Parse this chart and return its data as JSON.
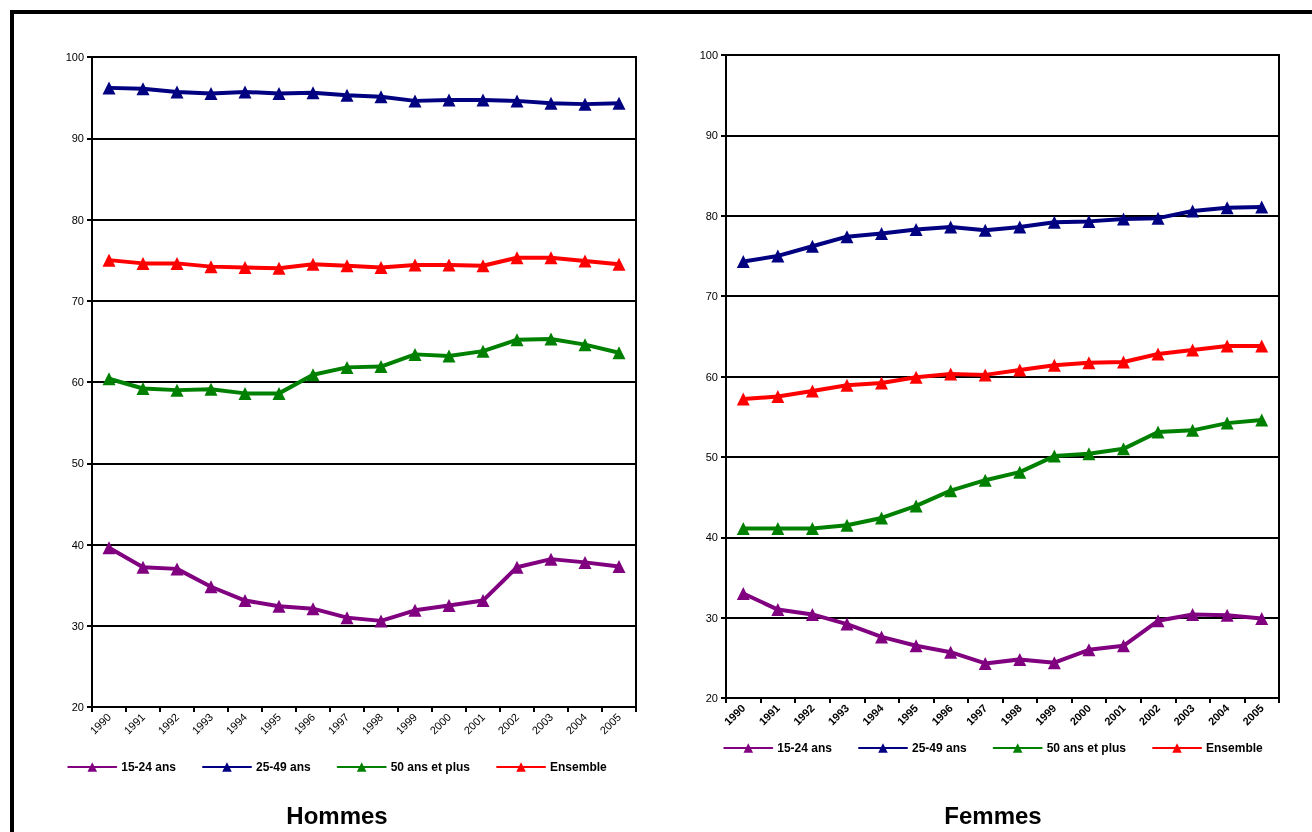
{
  "chart_data": [
    {
      "type": "line",
      "title": "Hommes",
      "categories": [
        "1990",
        "1991",
        "1992",
        "1993",
        "1994",
        "1995",
        "1996",
        "1997",
        "1998",
        "1999",
        "2000",
        "2001",
        "2002",
        "2003",
        "2004",
        "2005"
      ],
      "series": [
        {
          "name": "15-24 ans",
          "color": "#800080",
          "values": [
            39.6,
            37.2,
            37.0,
            34.8,
            33.1,
            32.4,
            32.1,
            31.0,
            30.6,
            31.9,
            32.5,
            33.1,
            37.2,
            38.2,
            37.8,
            37.3
          ]
        },
        {
          "name": "25-49 ans",
          "color": "#000080",
          "values": [
            96.2,
            96.1,
            95.7,
            95.5,
            95.7,
            95.5,
            95.6,
            95.3,
            95.1,
            94.6,
            94.7,
            94.7,
            94.6,
            94.3,
            94.2,
            94.3
          ]
        },
        {
          "name": "50 ans et plus",
          "color": "#008000",
          "values": [
            60.4,
            59.2,
            59.0,
            59.1,
            58.6,
            58.6,
            60.9,
            61.8,
            61.9,
            63.4,
            63.2,
            63.8,
            65.2,
            65.3,
            64.6,
            63.6
          ]
        },
        {
          "name": "Ensemble",
          "color": "#ff0000",
          "values": [
            75.0,
            74.6,
            74.6,
            74.2,
            74.1,
            74.0,
            74.5,
            74.3,
            74.1,
            74.4,
            74.4,
            74.3,
            75.3,
            75.3,
            74.9,
            74.5
          ]
        }
      ],
      "ylim": [
        20,
        100
      ],
      "yticks": [
        20,
        30,
        40,
        50,
        60,
        70,
        80,
        90,
        100
      ],
      "grid": "y",
      "legend": "bottom",
      "marker": "triangle",
      "line_style": "solid"
    },
    {
      "type": "line",
      "title": "Femmes",
      "categories": [
        "1990",
        "1991",
        "1992",
        "1993",
        "1994",
        "1995",
        "1996",
        "1997",
        "1998",
        "1999",
        "2000",
        "2001",
        "2002",
        "2003",
        "2004",
        "2005"
      ],
      "series": [
        {
          "name": "15-24 ans",
          "color": "#800080",
          "values": [
            33.0,
            31.0,
            30.4,
            29.2,
            27.6,
            26.5,
            25.7,
            24.3,
            24.8,
            24.4,
            26.0,
            26.5,
            29.6,
            30.4,
            30.3,
            29.9
          ]
        },
        {
          "name": "25-49 ans",
          "color": "#000080",
          "values": [
            74.3,
            75.0,
            76.2,
            77.4,
            77.8,
            78.3,
            78.6,
            78.2,
            78.6,
            79.2,
            79.3,
            79.6,
            79.7,
            80.6,
            81.0,
            81.1
          ]
        },
        {
          "name": "50 ans et plus",
          "color": "#008000",
          "values": [
            41.1,
            41.1,
            41.1,
            41.5,
            42.4,
            43.9,
            45.8,
            47.1,
            48.1,
            50.1,
            50.4,
            51.0,
            53.1,
            53.3,
            54.2,
            54.6
          ]
        },
        {
          "name": "Ensemble",
          "color": "#ff0000",
          "values": [
            57.2,
            57.5,
            58.2,
            58.9,
            59.2,
            59.9,
            60.3,
            60.2,
            60.8,
            61.4,
            61.7,
            61.8,
            62.8,
            63.3,
            63.8,
            63.8
          ]
        }
      ],
      "ylim": [
        20,
        100
      ],
      "yticks": [
        20,
        30,
        40,
        50,
        60,
        70,
        80,
        90,
        100
      ],
      "grid": "y",
      "legend": "bottom",
      "marker": "triangle",
      "line_style": "solid"
    }
  ]
}
